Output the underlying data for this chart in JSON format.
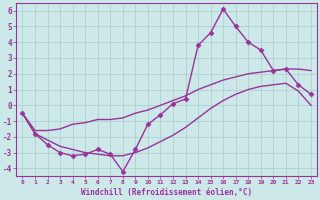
{
  "x": [
    0,
    1,
    2,
    3,
    4,
    5,
    6,
    7,
    8,
    9,
    10,
    11,
    12,
    13,
    14,
    15,
    16,
    17,
    18,
    19,
    20,
    21,
    22,
    23
  ],
  "y_main": [
    -0.5,
    -1.8,
    -2.5,
    -3.0,
    -3.2,
    -3.1,
    -2.8,
    -3.1,
    -4.2,
    -2.8,
    -1.2,
    -0.6,
    0.1,
    0.4,
    3.8,
    4.6,
    6.1,
    5.0,
    4.0,
    3.5,
    2.2,
    2.3,
    1.3,
    0.7
  ],
  "y_upper": [
    -0.5,
    -1.6,
    -1.6,
    -1.5,
    -1.2,
    -1.1,
    -0.9,
    -0.9,
    -0.8,
    -0.5,
    -0.3,
    0.0,
    0.3,
    0.6,
    1.0,
    1.3,
    1.6,
    1.8,
    2.0,
    2.1,
    2.2,
    2.3,
    2.3,
    2.2
  ],
  "y_lower": [
    -0.5,
    -1.8,
    -2.2,
    -2.6,
    -2.8,
    -3.0,
    -3.1,
    -3.2,
    -3.2,
    -3.0,
    -2.7,
    -2.3,
    -1.9,
    -1.4,
    -0.8,
    -0.2,
    0.3,
    0.7,
    1.0,
    1.2,
    1.3,
    1.4,
    0.9,
    0.0
  ],
  "xlim": [
    -0.5,
    23.5
  ],
  "ylim": [
    -4.5,
    6.5
  ],
  "yticks": [
    -4,
    -3,
    -2,
    -1,
    0,
    1,
    2,
    3,
    4,
    5,
    6
  ],
  "xticks": [
    0,
    1,
    2,
    3,
    4,
    5,
    6,
    7,
    8,
    9,
    10,
    11,
    12,
    13,
    14,
    15,
    16,
    17,
    18,
    19,
    20,
    21,
    22,
    23
  ],
  "xlabel": "Windchill (Refroidissement éolien,°C)",
  "line_color": "#993399",
  "bg_color": "#cce8e8",
  "grid_color": "#aacccc",
  "marker": "D",
  "marker_size": 2.5,
  "line_width": 1.0
}
